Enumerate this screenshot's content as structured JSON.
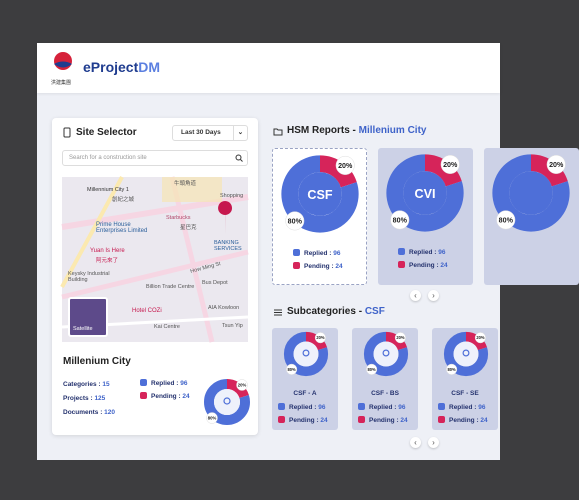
{
  "header": {
    "logo_text": "洪建集團",
    "brand": "eProject",
    "brand_accent": "DM"
  },
  "site_selector": {
    "title": "Site Selector",
    "range": "Last 30 Days",
    "search_placeholder": "Search for a construction site",
    "map_labels": [
      "Millennium City 1",
      "創紀之城",
      "牛頭角道",
      "Shopping",
      "Starbucks",
      "星巴克",
      "Prime House Enterprises Limited",
      "Yuan Is Here",
      "阿元來了",
      "BANKING SERVICES",
      "Keysky Industrial Building",
      "Billion Trade Centre",
      "How Ming St",
      "Bus Depot",
      "AIA Kowloon",
      "Hotel COZi",
      "Kai Centre",
      "Tsun Yip",
      "Satellite"
    ],
    "site_name": "Millenium City",
    "stats": [
      {
        "label": "Categories : ",
        "value": 15
      },
      {
        "label": "Projects : ",
        "value": 125
      },
      {
        "label": "Documents : ",
        "value": 120
      }
    ],
    "legend": [
      {
        "label": "Replied : ",
        "value": 96
      },
      {
        "label": "Pending : ",
        "value": 24
      }
    ],
    "donut": [
      {
        "value": 80,
        "label": "80%"
      },
      {
        "value": 20,
        "label": "20%"
      }
    ]
  },
  "hsm_reports": {
    "title": "HSM Reports - ",
    "site": "Millenium City",
    "cards": [
      {
        "code": "CSF",
        "legend": [
          {
            "label": "Replied : ",
            "value": 96
          },
          {
            "label": "Pending : ",
            "value": 24
          }
        ],
        "donut": [
          {
            "value": 80,
            "label": "80%"
          },
          {
            "value": 20,
            "label": "20%"
          }
        ]
      },
      {
        "code": "CVI",
        "legend": [
          {
            "label": "Replied : ",
            "value": 96
          },
          {
            "label": "Pending : ",
            "value": 24
          }
        ],
        "donut": [
          {
            "value": 80,
            "label": "80%"
          },
          {
            "value": 20,
            "label": "20%"
          }
        ]
      },
      {
        "code": "",
        "legend": [],
        "donut": [
          {
            "value": 80,
            "label": "80%"
          },
          {
            "value": 20,
            "label": "20%"
          }
        ]
      }
    ]
  },
  "subcategories": {
    "title": "Subcategories - ",
    "parent": "CSF",
    "cards": [
      {
        "code": "CSF - A",
        "legend": [
          {
            "label": "Replied : ",
            "value": 96
          },
          {
            "label": "Pending : ",
            "value": 24
          }
        ],
        "donut": [
          {
            "value": 80,
            "label": "80%"
          },
          {
            "value": 20,
            "label": "20%"
          }
        ]
      },
      {
        "code": "CSF - BS",
        "legend": [
          {
            "label": "Replied : ",
            "value": 96
          },
          {
            "label": "Pending : ",
            "value": 24
          }
        ],
        "donut": [
          {
            "value": 80,
            "label": "80%"
          },
          {
            "value": 20,
            "label": "20%"
          }
        ]
      },
      {
        "code": "CSF - SE",
        "legend": [
          {
            "label": "Replied : ",
            "value": 96
          },
          {
            "label": "Pending : ",
            "value": 24
          }
        ],
        "donut": [
          {
            "value": 80,
            "label": "80%"
          },
          {
            "value": 20,
            "label": "20%"
          }
        ]
      }
    ]
  }
}
